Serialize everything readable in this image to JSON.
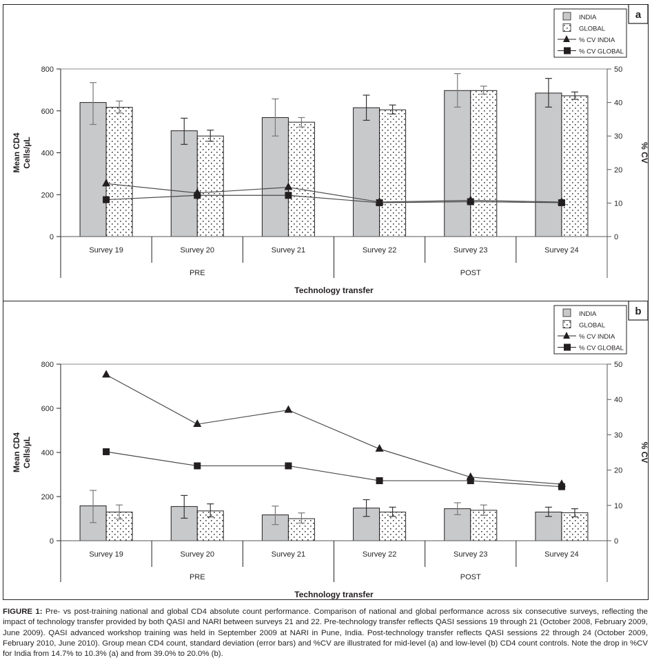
{
  "chart_data": [
    {
      "type": "bar",
      "panel_label": "a",
      "title": "",
      "categories": [
        "Survey 19",
        "Survey 20",
        "Survey 21",
        "Survey 22",
        "Survey 23",
        "Survey 24"
      ],
      "groups": [
        {
          "label": "PRE",
          "categories": [
            "Survey 19",
            "Survey 20",
            "Survey 21"
          ]
        },
        {
          "label": "POST",
          "categories": [
            "Survey 22",
            "Survey 23",
            "Survey 24"
          ]
        }
      ],
      "xlabel": "Technology transfer",
      "ylabel_lines": [
        "Mean CD4",
        "Cells/µL"
      ],
      "y2label": "% CV",
      "ylim": [
        0,
        800
      ],
      "yticks": [
        "0",
        "200",
        "400",
        "600",
        "800"
      ],
      "y2lim": [
        0,
        50
      ],
      "y2ticks": [
        "0",
        "10",
        "20",
        "30",
        "40",
        "50"
      ],
      "legend_position": "top-right",
      "series": [
        {
          "name": "INDIA",
          "kind": "bar",
          "color": "#c8c9cb",
          "values": [
            640,
            505,
            568,
            615,
            697,
            685
          ],
          "err_low": [
            535,
            440,
            480,
            555,
            618,
            618
          ],
          "err_high": [
            735,
            565,
            657,
            675,
            778,
            755
          ]
        },
        {
          "name": "GLOBAL",
          "kind": "bar",
          "pattern": "dots",
          "values": [
            617,
            480,
            546,
            605,
            697,
            672
          ],
          "err_low": [
            590,
            455,
            523,
            585,
            680,
            655
          ],
          "err_high": [
            647,
            508,
            568,
            628,
            718,
            690
          ]
        },
        {
          "name": "% CV INDIA",
          "kind": "line",
          "marker": "triangle",
          "axis": "right",
          "values": [
            15.8,
            13.0,
            14.7,
            10.3,
            10.8,
            10.3
          ]
        },
        {
          "name": "% CV GLOBAL",
          "kind": "line",
          "marker": "square",
          "axis": "right",
          "values": [
            11.0,
            12.3,
            12.3,
            10.1,
            10.4,
            10.1
          ]
        }
      ]
    },
    {
      "type": "bar",
      "panel_label": "b",
      "title": "",
      "categories": [
        "Survey 19",
        "Survey 20",
        "Survey 21",
        "Survey 22",
        "Survey 23",
        "Survey 24"
      ],
      "groups": [
        {
          "label": "PRE",
          "categories": [
            "Survey 19",
            "Survey 20",
            "Survey 21"
          ]
        },
        {
          "label": "POST",
          "categories": [
            "Survey 22",
            "Survey 23",
            "Survey 24"
          ]
        }
      ],
      "xlabel": "Technology transfer",
      "ylabel_lines": [
        "Mean CD4",
        "Cells/µL"
      ],
      "y2label": "% CV",
      "ylim": [
        0,
        800
      ],
      "yticks": [
        "0",
        "200",
        "400",
        "600",
        "800"
      ],
      "y2lim": [
        0,
        50
      ],
      "y2ticks": [
        "0",
        "10",
        "20",
        "30",
        "40",
        "50"
      ],
      "legend_position": "top-right",
      "series": [
        {
          "name": "INDIA",
          "kind": "bar",
          "color": "#c8c9cb",
          "values": [
            158,
            155,
            117,
            148,
            145,
            130
          ],
          "err_low": [
            82,
            102,
            73,
            110,
            118,
            110
          ],
          "err_high": [
            228,
            205,
            157,
            186,
            172,
            152
          ],
          "err_color": "#8a8a8a"
        },
        {
          "name": "GLOBAL",
          "kind": "bar",
          "pattern": "dots",
          "values": [
            130,
            135,
            100,
            130,
            138,
            127
          ],
          "err_low": [
            98,
            108,
            80,
            110,
            115,
            108
          ],
          "err_high": [
            162,
            167,
            126,
            152,
            162,
            145
          ]
        },
        {
          "name": "% CV INDIA",
          "kind": "line",
          "marker": "triangle",
          "axis": "right",
          "values": [
            47.0,
            33.0,
            37.0,
            26.0,
            18.0,
            16.0
          ]
        },
        {
          "name": "% CV GLOBAL",
          "kind": "line",
          "marker": "square",
          "axis": "right",
          "values": [
            25.2,
            21.2,
            21.2,
            17.0,
            17.0,
            15.3
          ]
        }
      ]
    }
  ],
  "caption": {
    "label": "FIGURE 1:",
    "text": " Pre- vs post-training national and global CD4 absolute count performance. Comparison of national and global performance across six consecutive surveys, reflecting the impact of technology transfer provided by both QASI and NARI between surveys 21 and 22. Pre-technology transfer reflects QASI sessions 19 through 21 (October 2008, February 2009, June 2009). QASI advanced workshop training was held in September 2009 at NARI in Pune, India. Post-technology transfer reflects QASI sessions 22 through 24 (October 2009, February 2010, June 2010). Group mean CD4 count, standard deviation (error bars) and %CV are illustrated for mid-level (a) and low-level (b) CD4 count controls. Note the drop in %CV for India from 14.7% to 10.3% (a) and from 39.0% to 20.0% (b)."
  }
}
